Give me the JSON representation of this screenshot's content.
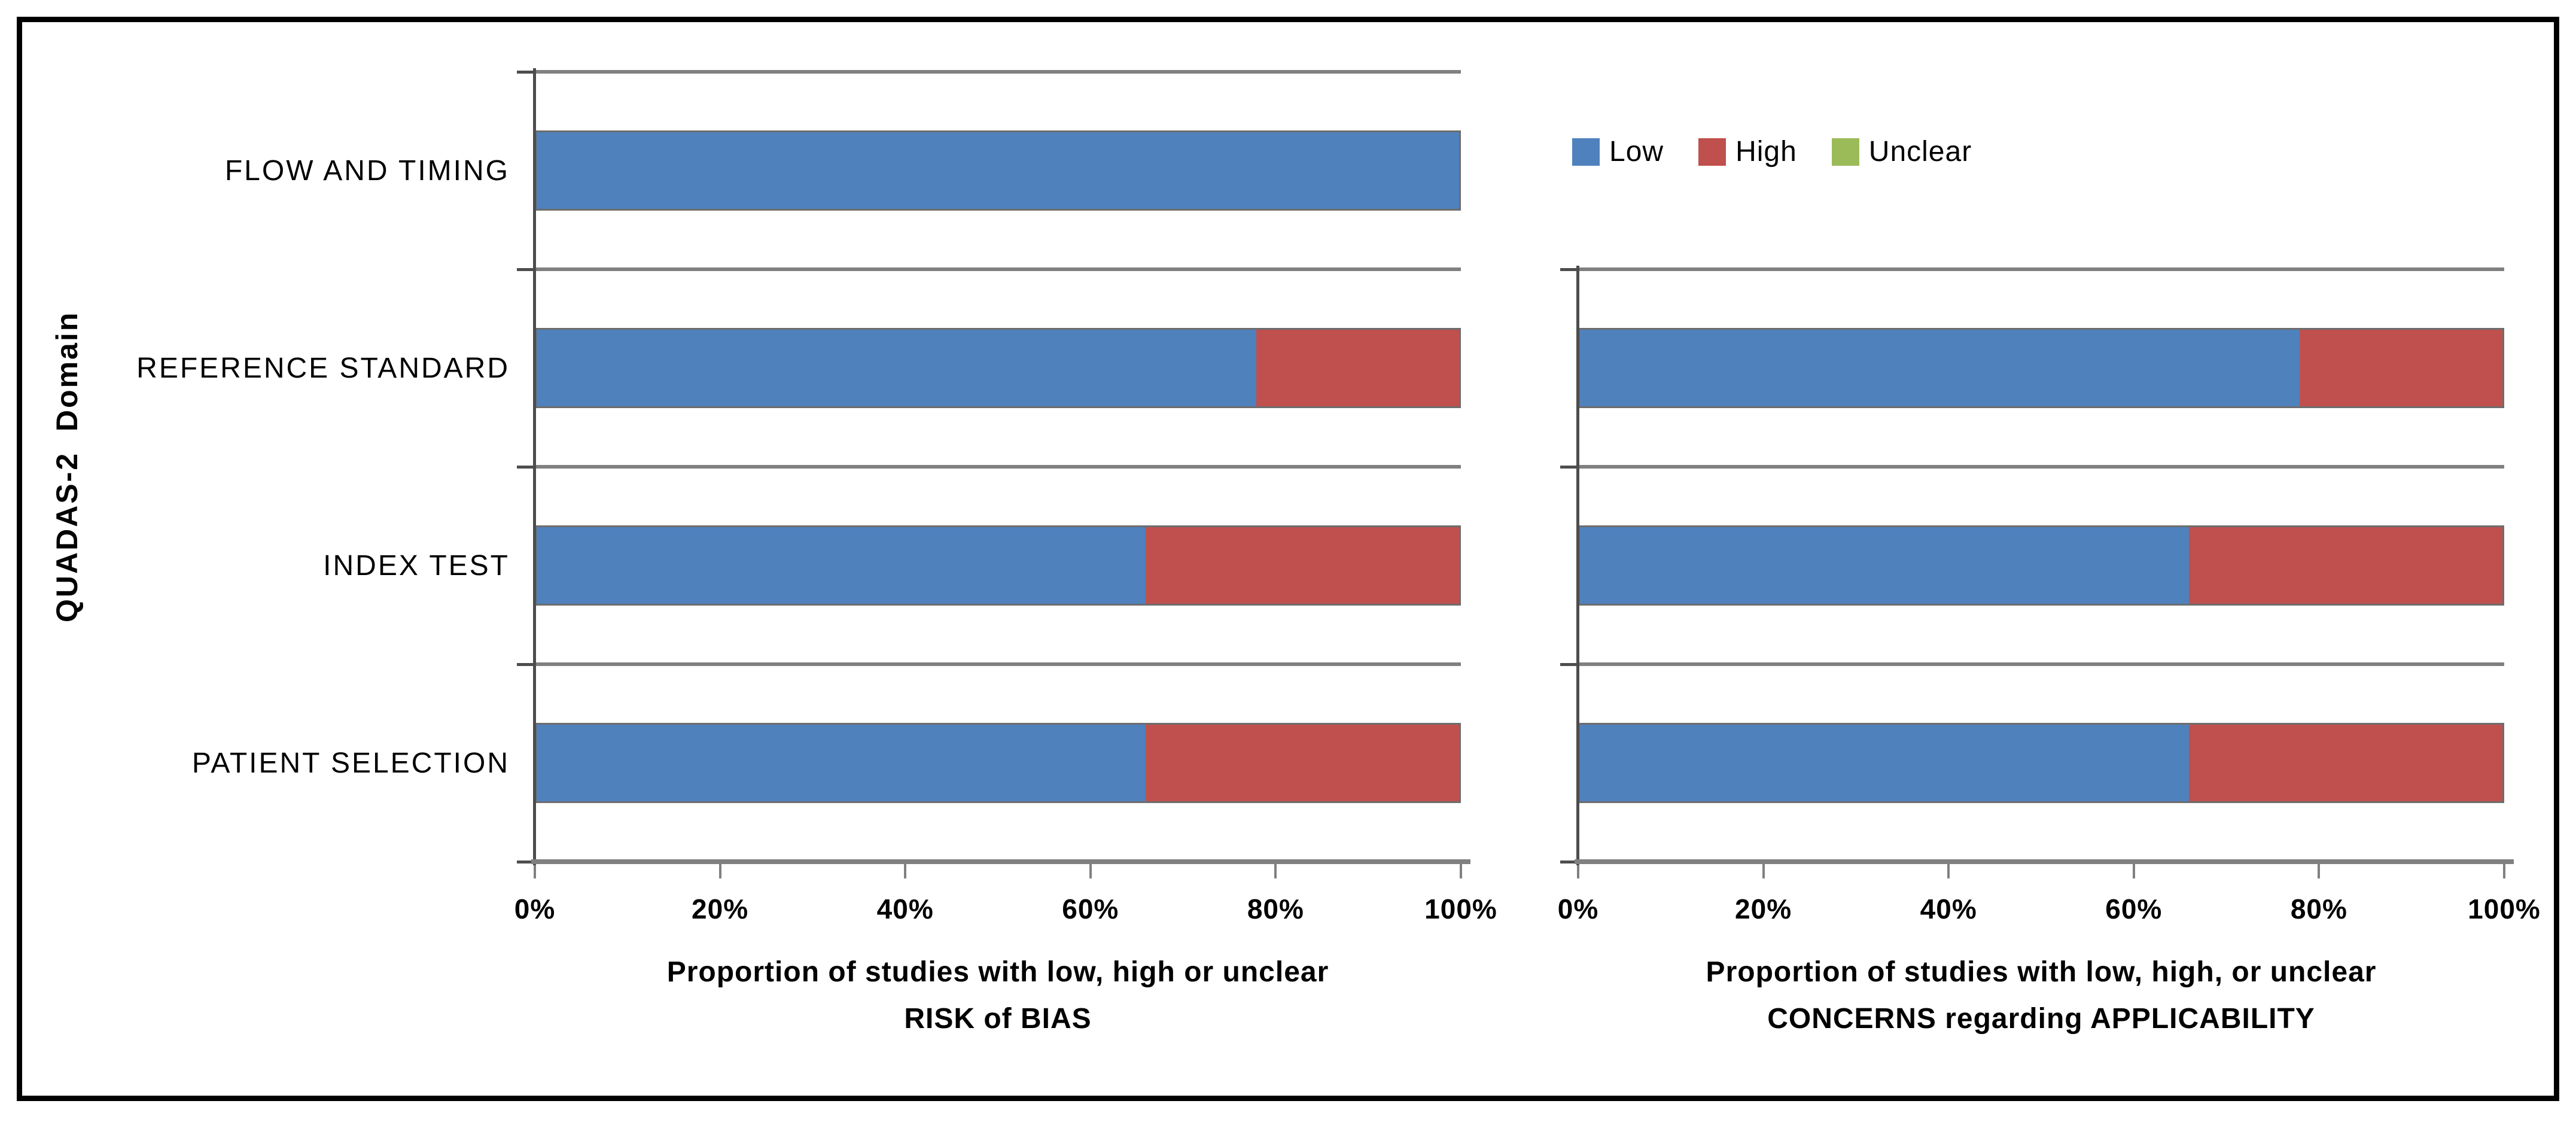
{
  "frame": {
    "border_color": "#000000",
    "background": "#ffffff"
  },
  "y_axis_title": "QUADAS-2  Domain",
  "legend": {
    "position": "top-right",
    "items": [
      {
        "label": "Low",
        "color": "#4F81BD"
      },
      {
        "label": "High",
        "color": "#C0504D"
      },
      {
        "label": "Unclear",
        "color": "#9BBB59"
      }
    ]
  },
  "colors": {
    "low": "#4F81BD",
    "high": "#C0504D",
    "unclear": "#9BBB59",
    "gridline": "#808080",
    "category_axis": "#4D4D4D",
    "text": "#000000"
  },
  "chart_data": [
    {
      "type": "bar",
      "orientation": "horizontal",
      "stacked": true,
      "unit": "percent",
      "grid": "category-separator-lines",
      "legend_position": "none",
      "xlim": [
        0,
        100
      ],
      "x_ticks": [
        {
          "label": "0%",
          "value": 0
        },
        {
          "label": "20%",
          "value": 20
        },
        {
          "label": "40%",
          "value": 40
        },
        {
          "label": "60%",
          "value": 60
        },
        {
          "label": "80%",
          "value": 80
        },
        {
          "label": "100%",
          "value": 100
        }
      ],
      "x_axis_title_line1": "Proportion of studies with low, high or unclear",
      "x_axis_title_line2": "RISK of BIAS",
      "categories": [
        "FLOW AND TIMING",
        "REFERENCE STANDARD",
        "INDEX TEST",
        "PATIENT SELECTION"
      ],
      "series": [
        {
          "name": "Low",
          "color": "#4F81BD",
          "values": [
            100,
            78,
            66,
            66
          ]
        },
        {
          "name": "High",
          "color": "#C0504D",
          "values": [
            0,
            22,
            34,
            34
          ]
        },
        {
          "name": "Unclear",
          "color": "#9BBB59",
          "values": [
            0,
            0,
            0,
            0
          ]
        }
      ]
    },
    {
      "type": "bar",
      "orientation": "horizontal",
      "stacked": true,
      "unit": "percent",
      "grid": "category-separator-lines",
      "legend_position": "top",
      "xlim": [
        0,
        100
      ],
      "x_ticks": [
        {
          "label": "0%",
          "value": 0
        },
        {
          "label": "20%",
          "value": 20
        },
        {
          "label": "40%",
          "value": 40
        },
        {
          "label": "60%",
          "value": 60
        },
        {
          "label": "80%",
          "value": 80
        },
        {
          "label": "100%",
          "value": 100
        }
      ],
      "x_axis_title_line1": "Proportion of studies with low, high, or unclear",
      "x_axis_title_line2": "CONCERNS regarding APPLICABILITY",
      "categories": [
        "REFERENCE STANDARD",
        "INDEX TEST",
        "PATIENT SELECTION"
      ],
      "series": [
        {
          "name": "Low",
          "color": "#4F81BD",
          "values": [
            78,
            66,
            66
          ]
        },
        {
          "name": "High",
          "color": "#C0504D",
          "values": [
            22,
            34,
            34
          ]
        },
        {
          "name": "Unclear",
          "color": "#9BBB59",
          "values": [
            0,
            0,
            0
          ]
        }
      ]
    }
  ]
}
